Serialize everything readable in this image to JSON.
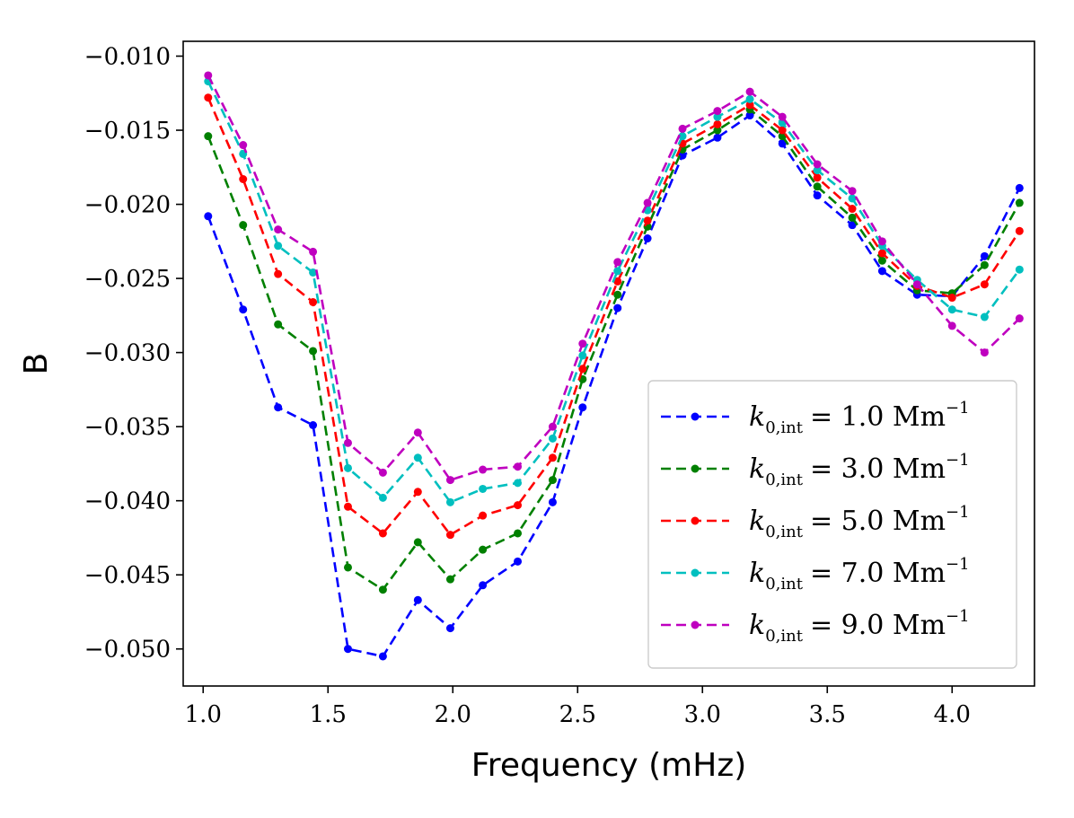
{
  "chart_data": {
    "type": "line",
    "title": "",
    "xlabel": "Frequency (mHz)",
    "ylabel": "B",
    "xlim": [
      0.92,
      4.33
    ],
    "ylim": [
      -0.0525,
      -0.009
    ],
    "xticks": [
      1.0,
      1.5,
      2.0,
      2.5,
      3.0,
      3.5,
      4.0
    ],
    "xtick_labels": [
      "1.0",
      "1.5",
      "2.0",
      "2.5",
      "3.0",
      "3.5",
      "4.0"
    ],
    "yticks": [
      -0.01,
      -0.015,
      -0.02,
      -0.025,
      -0.03,
      -0.035,
      -0.04,
      -0.045,
      -0.05
    ],
    "ytick_labels": [
      "−0.010",
      "−0.015",
      "−0.020",
      "−0.025",
      "−0.030",
      "−0.035",
      "−0.040",
      "−0.045",
      "−0.050"
    ],
    "grid": false,
    "legend_position": "lower-right",
    "x": [
      1.02,
      1.16,
      1.3,
      1.44,
      1.58,
      1.72,
      1.86,
      1.99,
      2.12,
      2.26,
      2.4,
      2.52,
      2.66,
      2.78,
      2.92,
      3.06,
      3.19,
      3.32,
      3.46,
      3.6,
      3.72,
      3.86,
      4.0,
      4.13,
      4.27
    ],
    "series": [
      {
        "legend_prefix": "k",
        "legend_subscript": "0,int",
        "legend_value": "= 1.0 Mm",
        "legend_superscript": "−1",
        "color": "#0000ff",
        "values": [
          -0.0208,
          -0.0271,
          -0.0337,
          -0.0349,
          -0.05,
          -0.0505,
          -0.0467,
          -0.0486,
          -0.0457,
          -0.0441,
          -0.0401,
          -0.0337,
          -0.027,
          -0.0223,
          -0.0167,
          -0.0155,
          -0.014,
          -0.0159,
          -0.0194,
          -0.0214,
          -0.0245,
          -0.0261,
          -0.0262,
          -0.0235,
          -0.0189
        ]
      },
      {
        "legend_prefix": "k",
        "legend_subscript": "0,int",
        "legend_value": "= 3.0 Mm",
        "legend_superscript": "−1",
        "color": "#008000",
        "values": [
          -0.0154,
          -0.0214,
          -0.0281,
          -0.0299,
          -0.0445,
          -0.046,
          -0.0428,
          -0.0453,
          -0.0433,
          -0.0422,
          -0.0386,
          -0.0318,
          -0.0261,
          -0.0215,
          -0.0163,
          -0.015,
          -0.0136,
          -0.0154,
          -0.0188,
          -0.0209,
          -0.0238,
          -0.0258,
          -0.026,
          -0.0241,
          -0.0199
        ]
      },
      {
        "legend_prefix": "k",
        "legend_subscript": "0,int",
        "legend_value": "= 5.0 Mm",
        "legend_superscript": "−1",
        "color": "#ff0000",
        "values": [
          -0.0128,
          -0.0183,
          -0.0247,
          -0.0266,
          -0.0404,
          -0.0422,
          -0.0394,
          -0.0423,
          -0.041,
          -0.0403,
          -0.0371,
          -0.0311,
          -0.0252,
          -0.0211,
          -0.0159,
          -0.0146,
          -0.0133,
          -0.015,
          -0.0182,
          -0.0203,
          -0.0233,
          -0.0255,
          -0.0263,
          -0.0254,
          -0.0218
        ]
      },
      {
        "legend_prefix": "k",
        "legend_subscript": "0,int",
        "legend_value": "= 7.0 Mm",
        "legend_superscript": "−1",
        "color": "#00bfbf",
        "values": [
          -0.0117,
          -0.0166,
          -0.0228,
          -0.0246,
          -0.0378,
          -0.0398,
          -0.0371,
          -0.0401,
          -0.0392,
          -0.0388,
          -0.0358,
          -0.0302,
          -0.0245,
          -0.0204,
          -0.0154,
          -0.0141,
          -0.0129,
          -0.0145,
          -0.0177,
          -0.0196,
          -0.0228,
          -0.0251,
          -0.0271,
          -0.0276,
          -0.0244
        ]
      },
      {
        "legend_prefix": "k",
        "legend_subscript": "0,int",
        "legend_value": "= 9.0 Mm",
        "legend_superscript": "−1",
        "color": "#bf00bf",
        "values": [
          -0.0113,
          -0.016,
          -0.0217,
          -0.0232,
          -0.0361,
          -0.0381,
          -0.0354,
          -0.0386,
          -0.0379,
          -0.0377,
          -0.035,
          -0.0294,
          -0.0239,
          -0.0199,
          -0.0149,
          -0.0137,
          -0.0124,
          -0.0141,
          -0.0173,
          -0.0191,
          -0.0225,
          -0.0254,
          -0.0282,
          -0.03,
          -0.0277
        ]
      }
    ]
  }
}
